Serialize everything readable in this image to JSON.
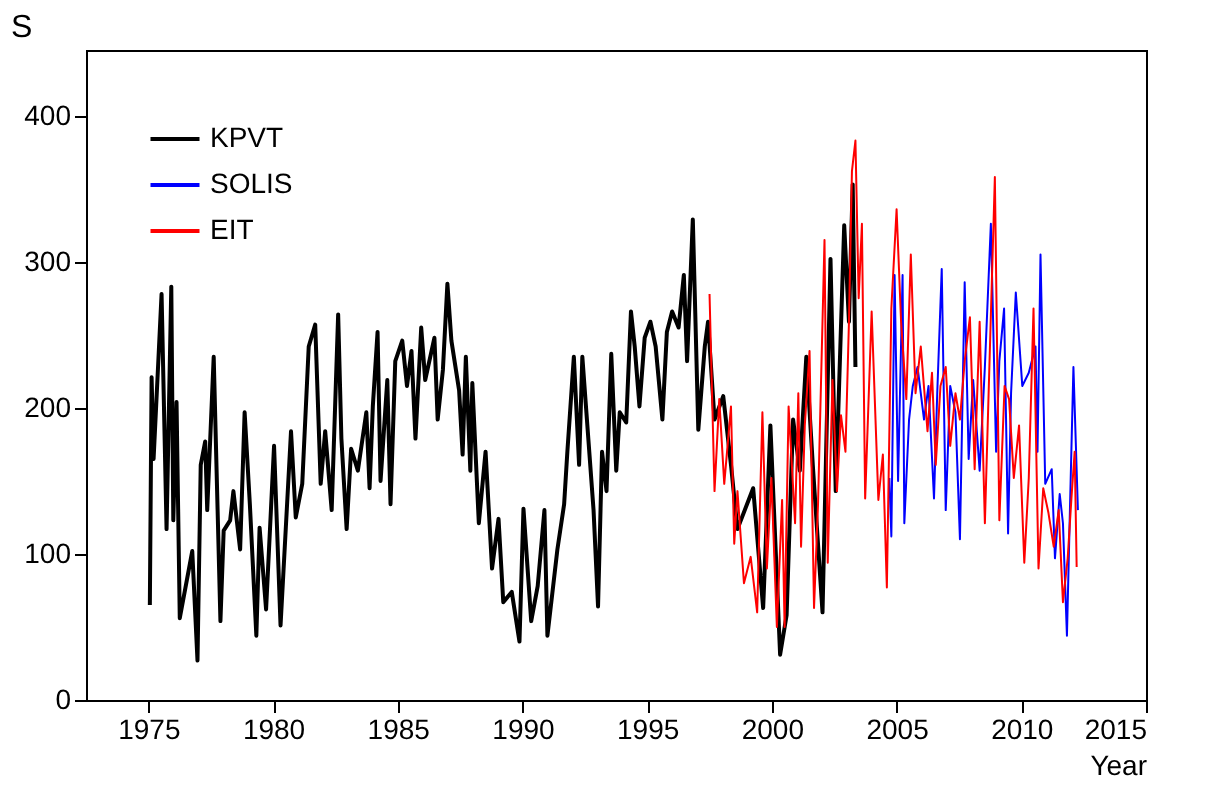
{
  "chart_data": {
    "type": "line",
    "xlabel": "Year",
    "ylabel": "S",
    "xlim": [
      1972.5,
      2015
    ],
    "ylim": [
      0,
      445
    ],
    "xticks": [
      1975,
      1980,
      1985,
      1990,
      1995,
      2000,
      2005,
      2010,
      2015
    ],
    "yticks": [
      0,
      100,
      200,
      300,
      400
    ],
    "grid": false,
    "legend": "top left",
    "line_style": "solid",
    "marker": "none",
    "series": [
      {
        "name": "KPVT",
        "color": "#000000",
        "x": [
          1975.06,
          1975.13,
          1975.21,
          1975.53,
          1975.73,
          1975.92,
          1976.0,
          1976.13,
          1976.26,
          1976.76,
          1976.97,
          1977.1,
          1977.28,
          1977.36,
          1977.62,
          1977.89,
          1978.02,
          1978.28,
          1978.41,
          1978.68,
          1978.86,
          1979.07,
          1979.33,
          1979.46,
          1979.72,
          1980.04,
          1980.3,
          1980.72,
          1980.91,
          1981.17,
          1981.43,
          1981.69,
          1981.91,
          1982.09,
          1982.35,
          1982.61,
          1982.74,
          1982.95,
          1983.13,
          1983.4,
          1983.74,
          1983.87,
          1984.0,
          1984.19,
          1984.31,
          1984.58,
          1984.71,
          1984.9,
          1985.18,
          1985.37,
          1985.55,
          1985.71,
          1985.94,
          1986.1,
          1986.47,
          1986.6,
          1986.81,
          1986.99,
          1987.15,
          1987.46,
          1987.6,
          1987.73,
          1987.91,
          1987.99,
          1988.25,
          1988.52,
          1988.78,
          1989.04,
          1989.23,
          1989.57,
          1989.88,
          1990.04,
          1990.35,
          1990.61,
          1990.88,
          1991.0,
          1991.4,
          1991.67,
          1991.8,
          1992.06,
          1992.27,
          1992.4,
          1992.64,
          1992.85,
          1993.03,
          1993.19,
          1993.37,
          1993.56,
          1993.76,
          1993.9,
          1994.16,
          1994.35,
          1994.5,
          1994.69,
          1994.9,
          1995.13,
          1995.34,
          1995.61,
          1995.79,
          1996.0,
          1996.26,
          1996.47,
          1996.6,
          1996.83,
          1997.05,
          1997.31,
          1997.44,
          1997.7,
          1998.05,
          1998.36,
          1998.62,
          1999.25,
          1999.65,
          1999.94,
          2000.33,
          2000.59,
          2000.85,
          2001.12,
          2001.38,
          2001.64,
          2002.03,
          2002.35,
          2002.56,
          2002.9,
          2003.09,
          2003.24,
          2003.35
        ],
        "values": [
          65,
          221,
          165,
          278,
          117,
          283,
          123,
          204,
          56,
          102,
          27,
          161,
          177,
          130,
          235,
          54,
          116,
          123,
          143,
          103,
          197,
          134,
          44,
          118,
          62,
          174,
          51,
          184,
          125,
          148,
          242,
          257,
          148,
          184,
          130,
          264,
          179,
          117,
          172,
          157,
          197,
          145,
          201,
          252,
          150,
          219,
          134,
          232,
          246,
          215,
          239,
          179,
          255,
          219,
          248,
          192,
          226,
          285,
          246,
          212,
          168,
          235,
          157,
          217,
          121,
          170,
          90,
          124,
          67,
          74,
          40,
          131,
          54,
          78,
          130,
          44,
          103,
          134,
          170,
          235,
          161,
          235,
          179,
          130,
          64,
          170,
          143,
          237,
          157,
          197,
          190,
          266,
          242,
          201,
          248,
          259,
          242,
          192,
          252,
          266,
          255,
          291,
          232,
          329,
          185,
          242,
          259,
          192,
          208,
          161,
          117,
          145,
          63,
          188,
          31,
          58,
          192,
          157,
          235,
          161,
          60,
          302,
          143,
          325,
          259,
          353,
          228
        ]
      },
      {
        "name": "SOLIS",
        "color": "#0000ff",
        "x": [
          2004.71,
          2004.79,
          2004.92,
          2005.06,
          2005.24,
          2005.31,
          2005.5,
          2005.65,
          2005.84,
          2006.1,
          2006.28,
          2006.5,
          2006.63,
          2006.81,
          2006.97,
          2007.15,
          2007.36,
          2007.54,
          2007.73,
          2007.89,
          2008.07,
          2008.33,
          2008.54,
          2008.78,
          2008.99,
          2009.12,
          2009.31,
          2009.47,
          2009.59,
          2009.78,
          2010.04,
          2010.3,
          2010.57,
          2010.65,
          2010.77,
          2010.96,
          2011.22,
          2011.35,
          2011.54,
          2011.67,
          2011.83,
          2011.95,
          2012.09,
          2012.27
        ],
        "values": [
          152,
          112,
          291,
          150,
          291,
          121,
          192,
          215,
          228,
          192,
          215,
          138,
          210,
          295,
          130,
          215,
          197,
          110,
          286,
          165,
          219,
          157,
          228,
          326,
          170,
          232,
          268,
          114,
          210,
          279,
          215,
          224,
          242,
          170,
          305,
          148,
          158,
          97,
          141,
          121,
          44,
          130,
          228,
          130
        ]
      },
      {
        "name": "EIT",
        "color": "#ff0000",
        "x": [
          1997.5,
          1997.7,
          1997.89,
          1998.09,
          1998.36,
          1998.49,
          1998.62,
          1998.88,
          1999.15,
          1999.41,
          1999.62,
          1999.8,
          1999.98,
          2000.2,
          2000.41,
          2000.51,
          2000.67,
          2000.93,
          2001.06,
          2001.17,
          2001.32,
          2001.51,
          2001.69,
          2001.85,
          2002.11,
          2002.24,
          2002.43,
          2002.61,
          2002.77,
          2002.95,
          2003.09,
          2003.21,
          2003.35,
          2003.48,
          2003.61,
          2003.74,
          2004.0,
          2004.27,
          2004.45,
          2004.61,
          2004.79,
          2005.0,
          2005.18,
          2005.39,
          2005.57,
          2005.76,
          2005.97,
          2006.24,
          2006.42,
          2006.57,
          2006.76,
          2006.97,
          2007.15,
          2007.36,
          2007.54,
          2007.73,
          2007.94,
          2008.13,
          2008.33,
          2008.54,
          2008.72,
          2008.94,
          2009.12,
          2009.33,
          2009.51,
          2009.7,
          2009.91,
          2010.12,
          2010.3,
          2010.49,
          2010.69,
          2010.88,
          2011.09,
          2011.3,
          2011.5,
          2011.67,
          2011.86,
          2012.01,
          2012.14,
          2012.22
        ],
        "values": [
          278,
          143,
          206,
          148,
          201,
          107,
          143,
          80,
          98,
          60,
          197,
          90,
          152,
          50,
          137,
          50,
          201,
          121,
          210,
          105,
          188,
          239,
          63,
          134,
          315,
          94,
          219,
          143,
          195,
          170,
          259,
          362,
          383,
          275,
          326,
          138,
          266,
          137,
          168,
          77,
          268,
          336,
          259,
          206,
          305,
          210,
          242,
          184,
          224,
          161,
          215,
          228,
          174,
          210,
          192,
          232,
          262,
          158,
          259,
          121,
          228,
          358,
          123,
          215,
          206,
          152,
          188,
          94,
          152,
          268,
          90,
          145,
          128,
          105,
          130,
          67,
          97,
          138,
          170,
          91
        ]
      }
    ]
  }
}
